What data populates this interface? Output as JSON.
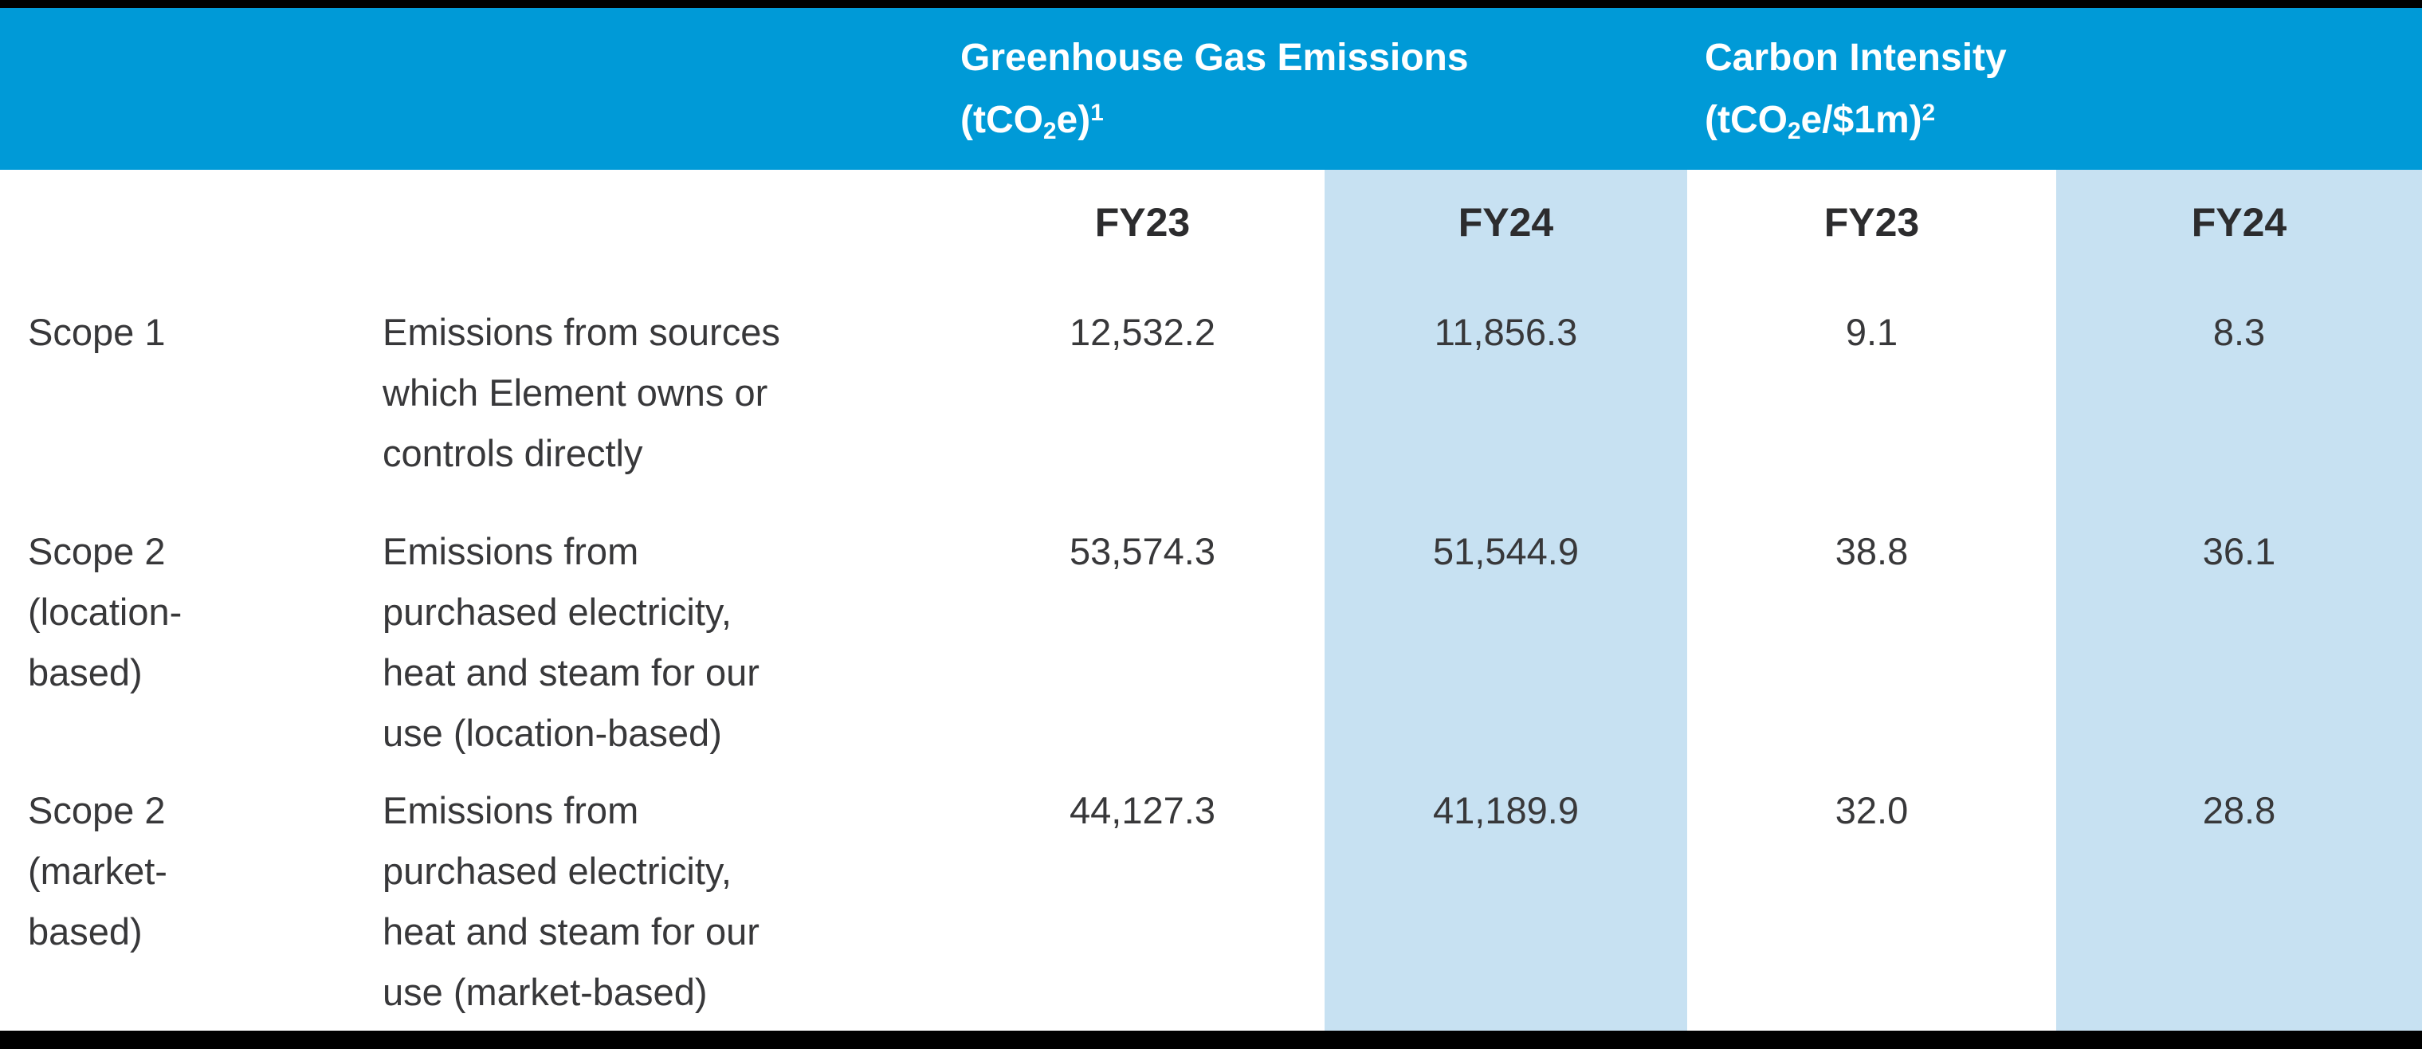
{
  "palette": {
    "header_bg": "#009AD7",
    "highlight_bg": "#C7E1F2",
    "frame_bar": "#000000",
    "header_text": "#FFFFFF",
    "body_text": "#38383A"
  },
  "header": {
    "ghg": {
      "title": "Greenhouse Gas Emissions",
      "unit_pre": "(tCO",
      "unit_sub": "2",
      "unit_mid": "e)",
      "unit_sup": "1"
    },
    "ci": {
      "title": "Carbon Intensity",
      "unit_pre": "(tCO",
      "unit_sub": "2",
      "unit_mid": "e/$1m)",
      "unit_sup": "2"
    }
  },
  "fy_labels": [
    "FY23",
    "FY24",
    "FY23",
    "FY24"
  ],
  "rows": [
    {
      "scope": "Scope 1",
      "description": "Emissions from sources\nwhich Element owns or\ncontrols directly",
      "ghg_fy23": "12,532.2",
      "ghg_fy24": "11,856.3",
      "ci_fy23": "9.1",
      "ci_fy24": "8.3"
    },
    {
      "scope": "Scope 2\n(location-\nbased)",
      "description": "Emissions from\npurchased electricity,\nheat and steam for our\nuse (location-based)",
      "ghg_fy23": "53,574.3",
      "ghg_fy24": "51,544.9",
      "ci_fy23": "38.8",
      "ci_fy24": "36.1"
    },
    {
      "scope": "Scope 2\n(market-\nbased)",
      "description": "Emissions from\npurchased electricity,\nheat and steam for our\nuse (market-based)",
      "ghg_fy23": "44,127.3",
      "ghg_fy24": "41,189.9",
      "ci_fy23": "32.0",
      "ci_fy24": "28.8"
    }
  ],
  "chart_data": {
    "type": "table",
    "title": "Greenhouse Gas Emissions and Carbon Intensity",
    "column_groups": [
      "Greenhouse Gas Emissions (tCO2e)",
      "Carbon Intensity (tCO2e/$1m)"
    ],
    "columns": [
      "FY23",
      "FY24",
      "FY23",
      "FY24"
    ],
    "row_labels": [
      "Scope 1",
      "Scope 2 (location-based)",
      "Scope 2 (market-based)"
    ],
    "values": [
      [
        12532.2,
        11856.3,
        9.1,
        8.3
      ],
      [
        53574.3,
        51544.9,
        38.8,
        36.1
      ],
      [
        44127.3,
        41189.9,
        32.0,
        28.8
      ]
    ]
  }
}
